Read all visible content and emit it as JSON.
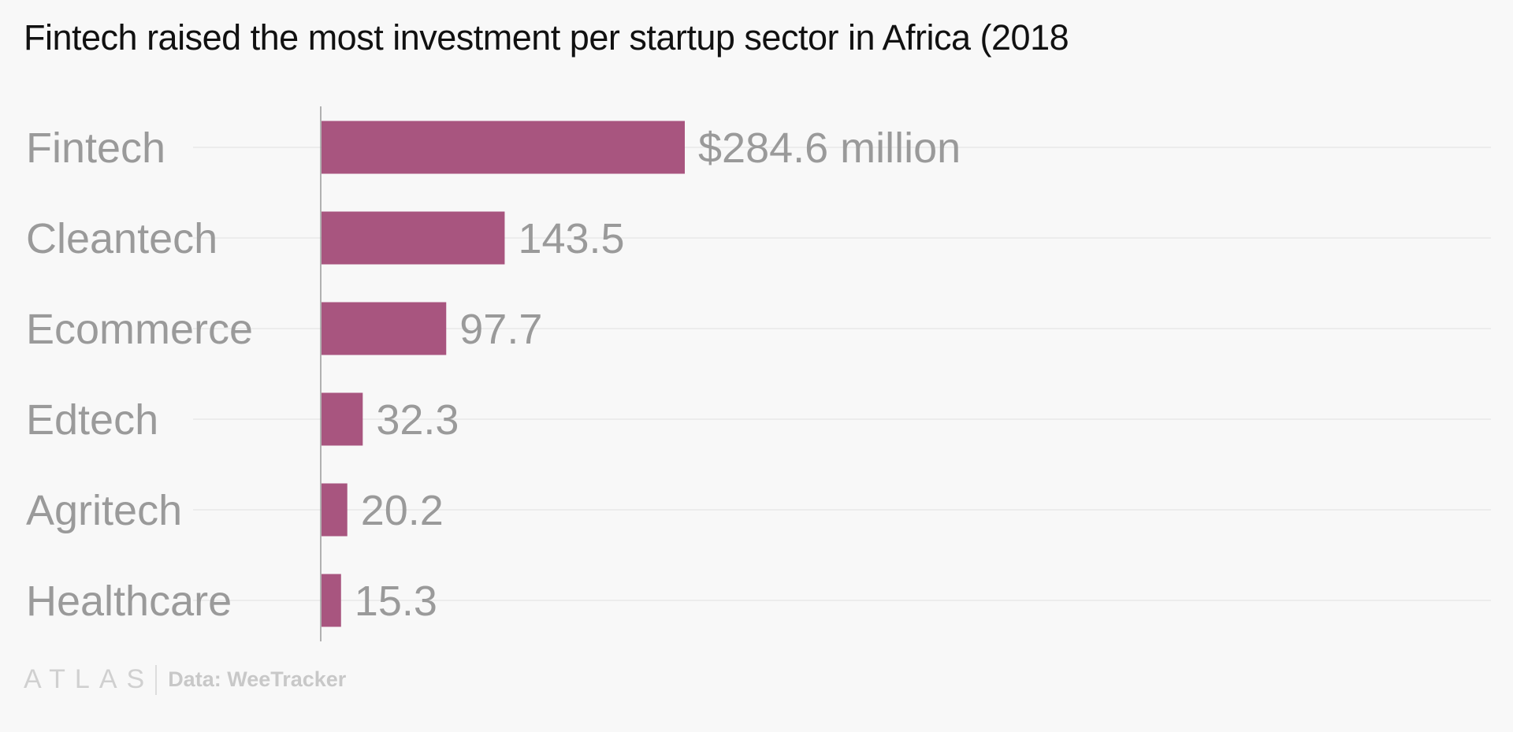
{
  "title": "Fintech raised the most investment per startup sector in Africa (2018",
  "footer": {
    "logo": "ATLAS",
    "source": "Data: WeeTracker"
  },
  "colors": {
    "bar": "#a8557f",
    "label": "#9a9a9a",
    "grid": "#ececec",
    "background": "#f8f8f8"
  },
  "chart_data": {
    "type": "bar",
    "orientation": "horizontal",
    "categories": [
      "Fintech",
      "Cleantech",
      "Ecommerce",
      "Edtech",
      "Agritech",
      "Healthcare"
    ],
    "values": [
      284.6,
      143.5,
      97.7,
      32.3,
      20.2,
      15.3
    ],
    "data_labels": [
      "$284.6 million",
      "143.5",
      "97.7",
      "32.3",
      "20.2",
      "15.3"
    ],
    "title": "Fintech raised the most investment per startup sector in Africa (2018",
    "xlabel": "",
    "ylabel": "",
    "unit": "million USD",
    "grid": true
  }
}
